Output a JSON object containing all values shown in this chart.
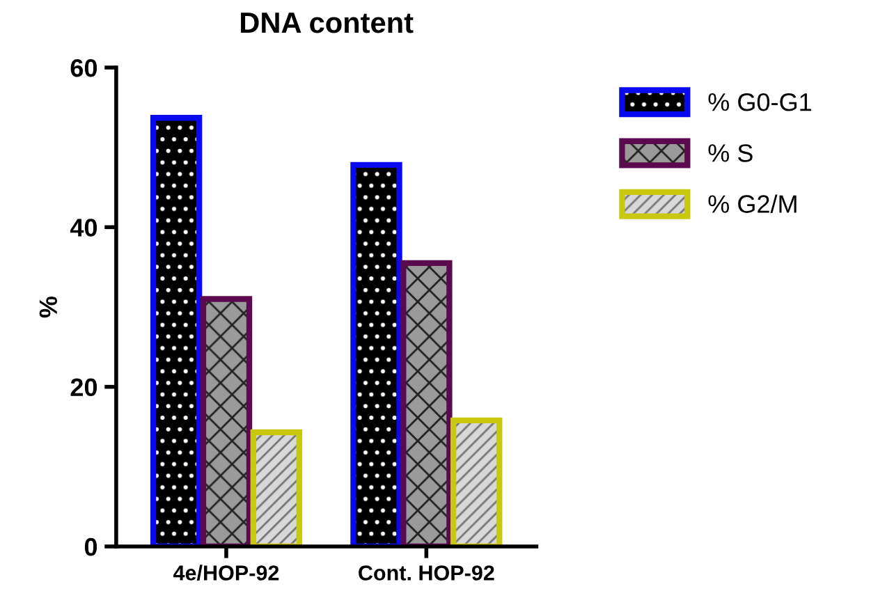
{
  "chart_data": {
    "type": "bar",
    "title": "DNA content",
    "ylabel": "%",
    "categories": [
      "4e/HOP-92",
      "Cont. HOP-92"
    ],
    "series": [
      {
        "name": "% G0-G1",
        "color": "#0a0af0",
        "values": [
          53.7,
          47.8
        ]
      },
      {
        "name": "% S",
        "color": "#5c0a50",
        "values": [
          31.0,
          35.5
        ]
      },
      {
        "name": "% G2/M",
        "color": "#c8c810",
        "values": [
          14.3,
          15.8
        ]
      }
    ],
    "ylim": [
      0,
      60
    ],
    "yticks": [
      0,
      20,
      40,
      60
    ],
    "grid": false,
    "legend": "top right"
  }
}
